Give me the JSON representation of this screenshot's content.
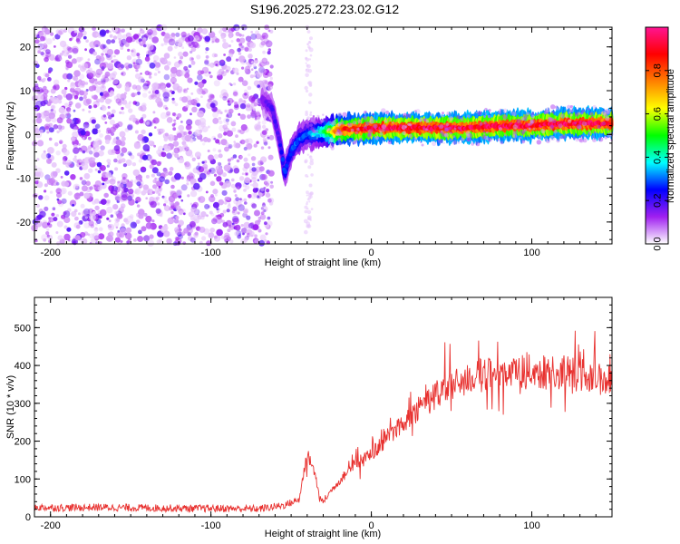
{
  "chart_data": [
    {
      "type": "heatmap",
      "title": "S196.2025.272.23.02.G12",
      "xlabel": "Height of straight line (km)",
      "ylabel": "Frequency (Hz)",
      "xlim": [
        -210,
        150
      ],
      "ylim": [
        -25,
        24.5
      ],
      "xticks": [
        -200,
        -100,
        0,
        100
      ],
      "yticks": [
        -20,
        -10,
        0,
        10,
        20
      ],
      "colorbar": {
        "label": "Normalized spectral amplitude",
        "range": [
          0,
          1
        ],
        "ticks": [
          0.0,
          0.2,
          0.4,
          0.6,
          0.8
        ],
        "tick_labels": [
          "0.0",
          "0.2",
          "0.4",
          "0.6",
          "0.8"
        ],
        "colors": [
          "#ffffff",
          "#a020f0",
          "#0000ff",
          "#00ffff",
          "#00ff00",
          "#ffff00",
          "#ff8000",
          "#ff0000",
          "#ff1493"
        ]
      },
      "ridge": {
        "x": [
          -68,
          -62,
          -58,
          -56,
          -54,
          -52,
          -50,
          -45,
          -40,
          -30,
          -20,
          0,
          20,
          40,
          60,
          80,
          100,
          120,
          150
        ],
        "frequency": [
          8,
          6,
          0,
          -4,
          -9,
          -6,
          -4,
          -1,
          0,
          0.5,
          1,
          1.5,
          1.5,
          1.5,
          1.5,
          2,
          2,
          2.5,
          2.5
        ],
        "amplitude": [
          0.15,
          0.2,
          0.2,
          0.25,
          0.3,
          0.25,
          0.3,
          0.3,
          0.3,
          0.45,
          0.85,
          0.95,
          0.95,
          0.95,
          0.95,
          0.95,
          0.95,
          0.95,
          0.95
        ]
      },
      "noise_region": {
        "x_start": -210,
        "x_end": -62,
        "level": "low-amplitude speckle"
      }
    },
    {
      "type": "line",
      "title": "",
      "xlabel": "Height of straight line (km)",
      "ylabel": "SNR (10 * v/v)",
      "xlim": [
        -210,
        150
      ],
      "ylim": [
        0,
        580
      ],
      "xticks": [
        -200,
        -100,
        0,
        100
      ],
      "yticks": [
        0,
        100,
        200,
        300,
        400,
        500
      ],
      "color": "#e8312f",
      "series": [
        {
          "name": "SNR",
          "x": [
            -210,
            -190,
            -170,
            -150,
            -130,
            -110,
            -90,
            -70,
            -55,
            -45,
            -40,
            -35,
            -32,
            -30,
            -25,
            -20,
            -10,
            0,
            10,
            20,
            30,
            40,
            50,
            60,
            70,
            80,
            90,
            100,
            110,
            120,
            130,
            140,
            150
          ],
          "values": [
            25,
            24,
            25,
            24,
            23,
            22,
            22,
            21,
            30,
            45,
            170,
            110,
            45,
            40,
            70,
            95,
            140,
            165,
            210,
            250,
            290,
            320,
            345,
            365,
            375,
            380,
            380,
            385,
            380,
            382,
            375,
            365,
            360
          ]
        }
      ]
    }
  ]
}
